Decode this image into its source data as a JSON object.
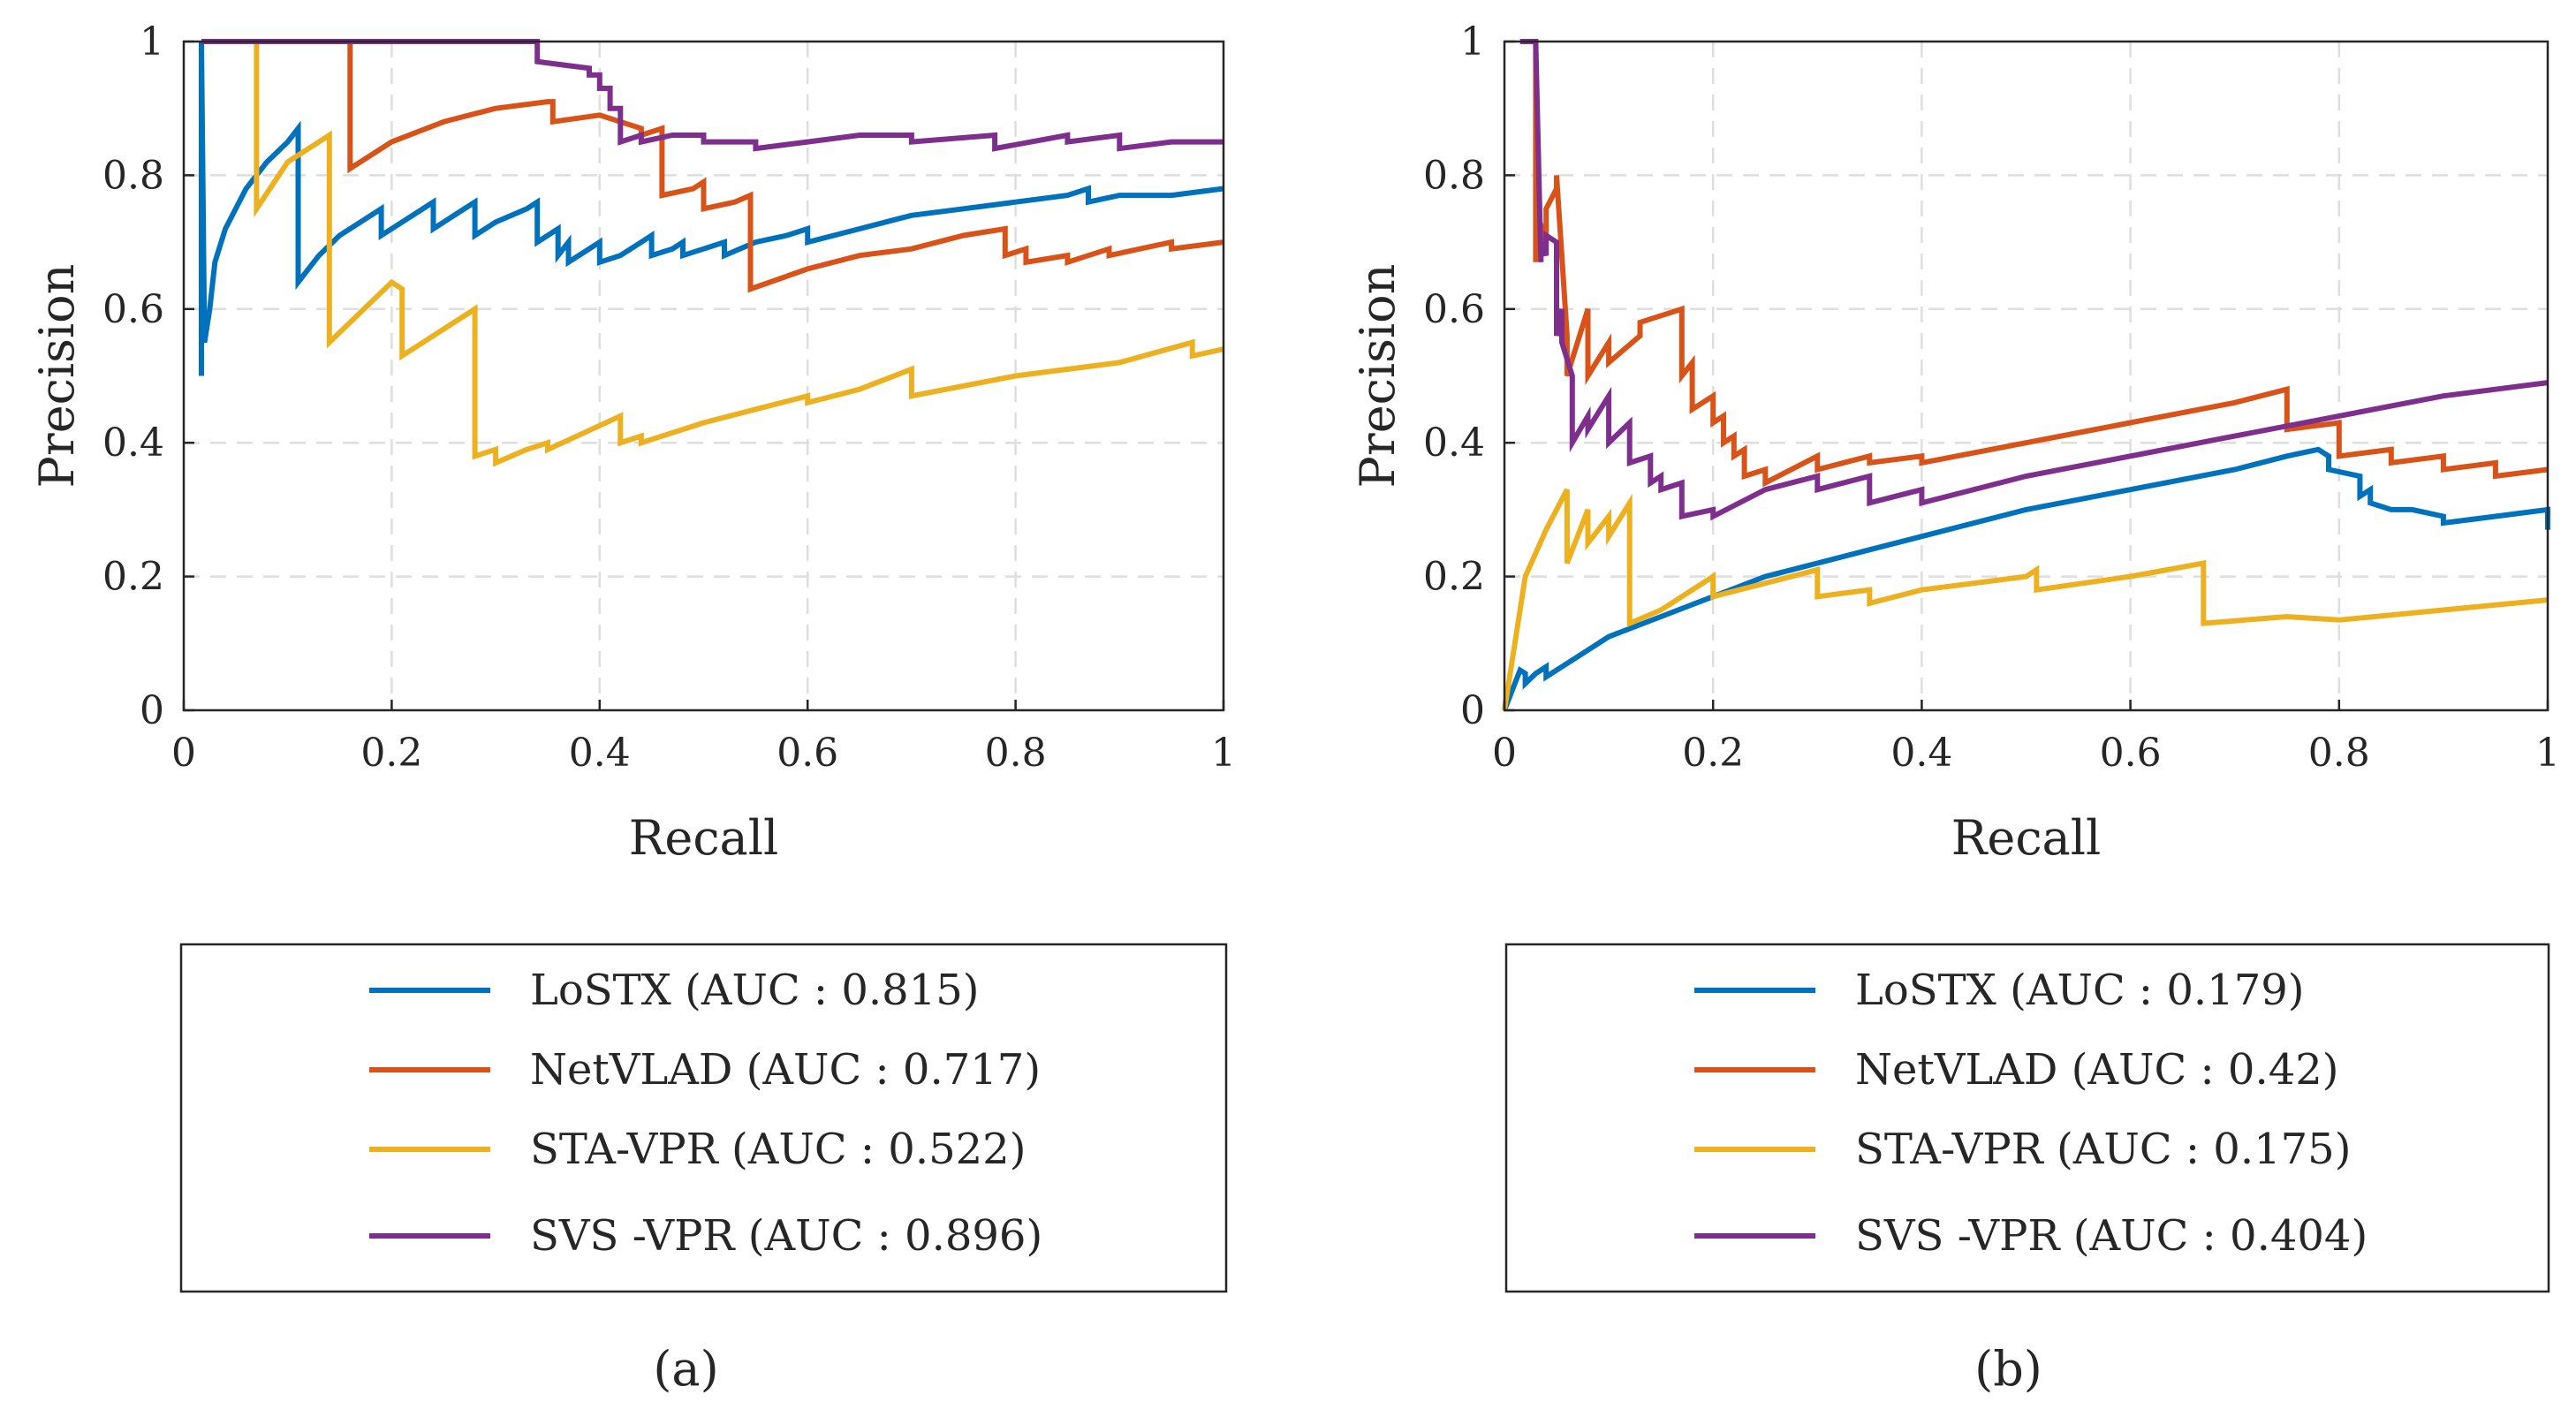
{
  "chart_data": [
    {
      "type": "line",
      "panel_label": "(a)",
      "xlabel": "Recall",
      "ylabel": "Precision",
      "xlim": [
        0,
        1
      ],
      "ylim": [
        0,
        1
      ],
      "xticks": [
        0,
        0.2,
        0.4,
        0.6,
        0.8,
        1
      ],
      "yticks": [
        0,
        0.2,
        0.4,
        0.6,
        0.8,
        1
      ],
      "xtick_labels": [
        "0",
        "0.2",
        "0.4",
        "0.6",
        "0.8",
        "1"
      ],
      "ytick_labels": [
        "0",
        "0.2",
        "0.4",
        "0.6",
        "0.8",
        "1"
      ],
      "grid": true,
      "legend_position": "below",
      "series": [
        {
          "name": "LoSTX",
          "legend_label": "LoSTX (AUC : 0.815)",
          "auc": 0.815,
          "color": "#0072BD",
          "x": [
            0.017,
            0.017,
            0.017,
            0.02,
            0.025,
            0.03,
            0.04,
            0.06,
            0.08,
            0.1,
            0.11,
            0.11,
            0.13,
            0.15,
            0.17,
            0.19,
            0.19,
            0.21,
            0.23,
            0.24,
            0.24,
            0.26,
            0.28,
            0.28,
            0.3,
            0.33,
            0.34,
            0.34,
            0.36,
            0.36,
            0.37,
            0.37,
            0.39,
            0.4,
            0.4,
            0.42,
            0.44,
            0.45,
            0.45,
            0.47,
            0.48,
            0.48,
            0.5,
            0.52,
            0.52,
            0.55,
            0.58,
            0.6,
            0.6,
            0.65,
            0.7,
            0.75,
            0.8,
            0.85,
            0.87,
            0.87,
            0.9,
            0.95,
            1.0
          ],
          "y": [
            0.5,
            0.5,
            1.0,
            0.55,
            0.6,
            0.67,
            0.72,
            0.78,
            0.82,
            0.85,
            0.87,
            0.64,
            0.68,
            0.71,
            0.73,
            0.75,
            0.71,
            0.73,
            0.75,
            0.76,
            0.72,
            0.74,
            0.76,
            0.71,
            0.73,
            0.75,
            0.76,
            0.7,
            0.72,
            0.68,
            0.7,
            0.67,
            0.69,
            0.7,
            0.67,
            0.68,
            0.7,
            0.71,
            0.68,
            0.69,
            0.7,
            0.68,
            0.69,
            0.7,
            0.68,
            0.7,
            0.71,
            0.72,
            0.7,
            0.72,
            0.74,
            0.75,
            0.76,
            0.77,
            0.78,
            0.76,
            0.77,
            0.77,
            0.78
          ]
        },
        {
          "name": "NetVLAD",
          "legend_label": "NetVLAD (AUC : 0.717)",
          "auc": 0.717,
          "color": "#D95319",
          "x": [
            0.16,
            0.16,
            0.16,
            0.2,
            0.25,
            0.3,
            0.35,
            0.355,
            0.355,
            0.4,
            0.44,
            0.44,
            0.46,
            0.46,
            0.49,
            0.5,
            0.5,
            0.53,
            0.545,
            0.545,
            0.6,
            0.65,
            0.7,
            0.75,
            0.79,
            0.79,
            0.81,
            0.81,
            0.85,
            0.85,
            0.89,
            0.89,
            0.95,
            0.95,
            1.0
          ],
          "y": [
            0.9,
            1.0,
            0.81,
            0.85,
            0.88,
            0.9,
            0.91,
            0.91,
            0.88,
            0.89,
            0.87,
            0.86,
            0.87,
            0.77,
            0.78,
            0.79,
            0.75,
            0.76,
            0.77,
            0.63,
            0.66,
            0.68,
            0.69,
            0.71,
            0.72,
            0.68,
            0.69,
            0.67,
            0.68,
            0.67,
            0.69,
            0.68,
            0.7,
            0.69,
            0.7
          ]
        },
        {
          "name": "STA-VPR",
          "legend_label": "STA-VPR (AUC : 0.522)",
          "auc": 0.522,
          "color": "#EDB120",
          "x": [
            0.07,
            0.07,
            0.07,
            0.1,
            0.14,
            0.14,
            0.2,
            0.21,
            0.21,
            0.25,
            0.28,
            0.28,
            0.3,
            0.3,
            0.33,
            0.35,
            0.35,
            0.42,
            0.42,
            0.44,
            0.44,
            0.5,
            0.55,
            0.6,
            0.6,
            0.65,
            0.7,
            0.7,
            0.8,
            0.9,
            0.97,
            0.97,
            1.0
          ],
          "y": [
            0.75,
            1.0,
            0.75,
            0.82,
            0.86,
            0.55,
            0.64,
            0.63,
            0.53,
            0.57,
            0.6,
            0.38,
            0.39,
            0.37,
            0.39,
            0.4,
            0.39,
            0.44,
            0.4,
            0.41,
            0.4,
            0.43,
            0.45,
            0.47,
            0.46,
            0.48,
            0.51,
            0.47,
            0.5,
            0.52,
            0.55,
            0.53,
            0.54
          ]
        },
        {
          "name": "SVS -VPR",
          "legend_label": "SVS -VPR (AUC : 0.896)",
          "auc": 0.896,
          "color": "#7E2F8E",
          "x": [
            0.017,
            0.33,
            0.34,
            0.34,
            0.39,
            0.39,
            0.4,
            0.4,
            0.41,
            0.41,
            0.42,
            0.42,
            0.44,
            0.44,
            0.47,
            0.5,
            0.5,
            0.55,
            0.55,
            0.6,
            0.65,
            0.7,
            0.7,
            0.78,
            0.78,
            0.85,
            0.85,
            0.9,
            0.9,
            0.95,
            1.0
          ],
          "y": [
            1.0,
            1.0,
            1.0,
            0.97,
            0.96,
            0.95,
            0.95,
            0.93,
            0.93,
            0.9,
            0.9,
            0.85,
            0.86,
            0.85,
            0.86,
            0.86,
            0.85,
            0.85,
            0.84,
            0.85,
            0.86,
            0.86,
            0.85,
            0.86,
            0.84,
            0.86,
            0.85,
            0.86,
            0.84,
            0.85,
            0.85
          ]
        }
      ]
    },
    {
      "type": "line",
      "panel_label": "(b)",
      "xlabel": "Recall",
      "ylabel": "Precision",
      "xlim": [
        0,
        1
      ],
      "ylim": [
        0,
        1
      ],
      "xticks": [
        0,
        0.2,
        0.4,
        0.6,
        0.8,
        1
      ],
      "yticks": [
        0,
        0.2,
        0.4,
        0.6,
        0.8,
        1
      ],
      "xtick_labels": [
        "0",
        "0.2",
        "0.4",
        "0.6",
        "0.8",
        "1"
      ],
      "ytick_labels": [
        "0",
        "0.2",
        "0.4",
        "0.6",
        "0.8",
        "1"
      ],
      "grid": true,
      "legend_position": "below",
      "series": [
        {
          "name": "LoSTX",
          "legend_label": "LoSTX (AUC : 0.179)",
          "auc": 0.179,
          "color": "#0072BD",
          "x": [
            0.0,
            0.01,
            0.015,
            0.02,
            0.02,
            0.03,
            0.04,
            0.04,
            0.06,
            0.08,
            0.09,
            0.1,
            0.15,
            0.2,
            0.25,
            0.3,
            0.35,
            0.4,
            0.5,
            0.6,
            0.7,
            0.75,
            0.78,
            0.79,
            0.79,
            0.82,
            0.82,
            0.83,
            0.83,
            0.85,
            0.87,
            0.9,
            0.9,
            0.95,
            1.0,
            1.0
          ],
          "y": [
            0.0,
            0.04,
            0.06,
            0.055,
            0.04,
            0.055,
            0.065,
            0.05,
            0.07,
            0.09,
            0.1,
            0.11,
            0.14,
            0.17,
            0.2,
            0.22,
            0.24,
            0.26,
            0.3,
            0.33,
            0.36,
            0.38,
            0.39,
            0.38,
            0.36,
            0.35,
            0.32,
            0.33,
            0.31,
            0.3,
            0.3,
            0.29,
            0.28,
            0.29,
            0.3,
            0.27
          ]
        },
        {
          "name": "NetVLAD",
          "legend_label": "NetVLAD (AUC : 0.42)",
          "auc": 0.42,
          "color": "#D95319",
          "x": [
            0.03,
            0.03,
            0.03,
            0.04,
            0.04,
            0.05,
            0.05,
            0.06,
            0.06,
            0.08,
            0.08,
            0.1,
            0.1,
            0.13,
            0.13,
            0.17,
            0.17,
            0.18,
            0.18,
            0.2,
            0.2,
            0.21,
            0.21,
            0.22,
            0.22,
            0.23,
            0.23,
            0.25,
            0.25,
            0.3,
            0.3,
            0.35,
            0.35,
            0.4,
            0.4,
            0.5,
            0.6,
            0.7,
            0.75,
            0.75,
            0.8,
            0.8,
            0.85,
            0.85,
            0.9,
            0.9,
            0.95,
            0.95,
            1.0
          ],
          "y": [
            1.0,
            0.67,
            0.75,
            0.7,
            0.75,
            0.78,
            0.8,
            0.56,
            0.5,
            0.6,
            0.5,
            0.55,
            0.52,
            0.56,
            0.58,
            0.6,
            0.5,
            0.52,
            0.45,
            0.47,
            0.43,
            0.44,
            0.4,
            0.41,
            0.38,
            0.39,
            0.35,
            0.36,
            0.34,
            0.38,
            0.36,
            0.38,
            0.37,
            0.38,
            0.37,
            0.4,
            0.43,
            0.46,
            0.48,
            0.42,
            0.43,
            0.38,
            0.39,
            0.37,
            0.38,
            0.36,
            0.37,
            0.35,
            0.36
          ]
        },
        {
          "name": "STA-VPR",
          "legend_label": "STA-VPR (AUC : 0.175)",
          "auc": 0.175,
          "color": "#EDB120",
          "x": [
            0.0,
            0.02,
            0.04,
            0.06,
            0.06,
            0.08,
            0.08,
            0.1,
            0.1,
            0.12,
            0.12,
            0.15,
            0.2,
            0.2,
            0.25,
            0.3,
            0.3,
            0.35,
            0.35,
            0.4,
            0.45,
            0.5,
            0.51,
            0.51,
            0.6,
            0.67,
            0.67,
            0.75,
            0.8,
            0.9,
            1.0
          ],
          "y": [
            0.0,
            0.2,
            0.27,
            0.33,
            0.22,
            0.3,
            0.25,
            0.29,
            0.26,
            0.31,
            0.13,
            0.15,
            0.2,
            0.17,
            0.19,
            0.21,
            0.17,
            0.18,
            0.16,
            0.18,
            0.19,
            0.2,
            0.21,
            0.18,
            0.2,
            0.22,
            0.13,
            0.14,
            0.135,
            0.15,
            0.165
          ]
        },
        {
          "name": "SVS -VPR",
          "legend_label": "SVS -VPR (AUC : 0.404)",
          "auc": 0.404,
          "color": "#7E2F8E",
          "x": [
            0.015,
            0.03,
            0.035,
            0.035,
            0.04,
            0.04,
            0.05,
            0.05,
            0.055,
            0.055,
            0.065,
            0.065,
            0.08,
            0.08,
            0.1,
            0.1,
            0.12,
            0.12,
            0.14,
            0.14,
            0.15,
            0.15,
            0.17,
            0.17,
            0.2,
            0.2,
            0.25,
            0.3,
            0.3,
            0.35,
            0.35,
            0.4,
            0.4,
            0.5,
            0.6,
            0.7,
            0.8,
            0.9,
            1.0
          ],
          "y": [
            1.0,
            1.0,
            0.67,
            0.7,
            0.68,
            0.71,
            0.7,
            0.56,
            0.6,
            0.55,
            0.5,
            0.4,
            0.44,
            0.42,
            0.47,
            0.4,
            0.43,
            0.37,
            0.38,
            0.34,
            0.35,
            0.33,
            0.34,
            0.29,
            0.3,
            0.29,
            0.33,
            0.35,
            0.33,
            0.35,
            0.31,
            0.33,
            0.31,
            0.35,
            0.38,
            0.41,
            0.44,
            0.47,
            0.49
          ]
        }
      ]
    }
  ]
}
